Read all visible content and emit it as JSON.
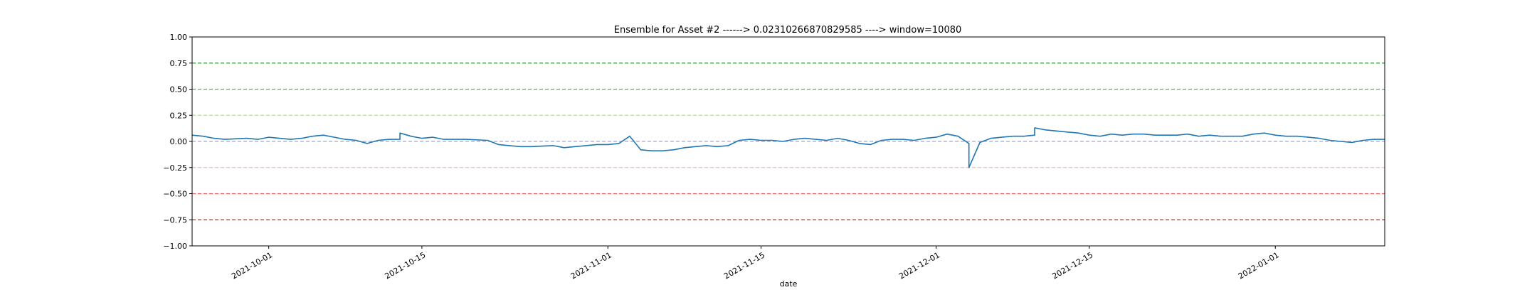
{
  "chart_data": {
    "type": "line",
    "title": "Ensemble for Asset #2 ------> 0.02310266870829585 ----> window=10080",
    "xlabel": "date",
    "ylabel": "",
    "xlim": [
      "2021-09-24",
      "2022-01-11"
    ],
    "ylim": [
      -1.0,
      1.0
    ],
    "grid": false,
    "legend": "none",
    "y_ticks": [
      "1.00",
      "0.75",
      "0.50",
      "0.25",
      "0.00",
      "−0.25",
      "−0.50",
      "−0.75",
      "−1.00"
    ],
    "x_ticks": [
      {
        "date": "2021-10-01",
        "label": "2021-10-01"
      },
      {
        "date": "2021-10-15",
        "label": "2021-10-15"
      },
      {
        "date": "2021-11-01",
        "label": "2021-11-01"
      },
      {
        "date": "2021-11-15",
        "label": "2021-11-15"
      },
      {
        "date": "2021-12-01",
        "label": "2021-12-01"
      },
      {
        "date": "2021-12-15",
        "label": "2021-12-15"
      },
      {
        "date": "2022-01-01",
        "label": "2022-01-01"
      }
    ],
    "reference_lines": [
      {
        "y": 0.75,
        "color": "#2e8b2e"
      },
      {
        "y": 0.5,
        "color": "#5aaa5a"
      },
      {
        "y": 0.25,
        "color": "#b5dca0"
      },
      {
        "y": 0.0,
        "color": "#a8a8c8"
      },
      {
        "y": -0.25,
        "color": "#f2b8b8"
      },
      {
        "y": -0.5,
        "color": "#e86060"
      },
      {
        "y": -0.75,
        "color": "#d62020"
      }
    ],
    "series": [
      {
        "color": "#1f77b4",
        "x": [
          "2021-09-24",
          "2021-09-25",
          "2021-09-26",
          "2021-09-27",
          "2021-09-29",
          "2021-09-30",
          "2021-10-01",
          "2021-10-02",
          "2021-10-03",
          "2021-10-04",
          "2021-10-05",
          "2021-10-06",
          "2021-10-07",
          "2021-10-08",
          "2021-10-09",
          "2021-10-10",
          "2021-10-11",
          "2021-10-12",
          "2021-10-13",
          "2021-10-13",
          "2021-10-14",
          "2021-10-15",
          "2021-10-16",
          "2021-10-17",
          "2021-10-19",
          "2021-10-21",
          "2021-10-22",
          "2021-10-23",
          "2021-10-24",
          "2021-10-25",
          "2021-10-27",
          "2021-10-28",
          "2021-10-29",
          "2021-10-30",
          "2021-10-31",
          "2021-11-01",
          "2021-11-02",
          "2021-11-03",
          "2021-11-04",
          "2021-11-05",
          "2021-11-06",
          "2021-11-07",
          "2021-11-08",
          "2021-11-09",
          "2021-11-10",
          "2021-11-11",
          "2021-11-12",
          "2021-11-13",
          "2021-11-14",
          "2021-11-15",
          "2021-11-16",
          "2021-11-17",
          "2021-11-18",
          "2021-11-19",
          "2021-11-20",
          "2021-11-21",
          "2021-11-22",
          "2021-11-23",
          "2021-11-24",
          "2021-11-25",
          "2021-11-26",
          "2021-11-27",
          "2021-11-28",
          "2021-11-29",
          "2021-11-30",
          "2021-12-01",
          "2021-12-02",
          "2021-12-03",
          "2021-12-04",
          "2021-12-04",
          "2021-12-05",
          "2021-12-06",
          "2021-12-07",
          "2021-12-08",
          "2021-12-09",
          "2021-12-10",
          "2021-12-10",
          "2021-12-11",
          "2021-12-12",
          "2021-12-13",
          "2021-12-14",
          "2021-12-15",
          "2021-12-16",
          "2021-12-17",
          "2021-12-18",
          "2021-12-19",
          "2021-12-20",
          "2021-12-21",
          "2021-12-22",
          "2021-12-23",
          "2021-12-24",
          "2021-12-25",
          "2021-12-26",
          "2021-12-27",
          "2021-12-28",
          "2021-12-29",
          "2021-12-30",
          "2021-12-31",
          "2022-01-01",
          "2022-01-02",
          "2022-01-03",
          "2022-01-04",
          "2022-01-05",
          "2022-01-06",
          "2022-01-07",
          "2022-01-08",
          "2022-01-09",
          "2022-01-10",
          "2022-01-11"
        ],
        "y": [
          0.06,
          0.05,
          0.03,
          0.02,
          0.03,
          0.02,
          0.04,
          0.03,
          0.02,
          0.03,
          0.05,
          0.06,
          0.04,
          0.02,
          0.01,
          -0.02,
          0.01,
          0.02,
          0.02,
          0.08,
          0.05,
          0.03,
          0.04,
          0.02,
          0.02,
          0.01,
          -0.03,
          -0.04,
          -0.05,
          -0.05,
          -0.04,
          -0.06,
          -0.05,
          -0.04,
          -0.03,
          -0.03,
          -0.02,
          0.05,
          -0.08,
          -0.09,
          -0.09,
          -0.08,
          -0.06,
          -0.05,
          -0.04,
          -0.05,
          -0.04,
          0.01,
          0.02,
          0.01,
          0.01,
          0.0,
          0.02,
          0.03,
          0.02,
          0.01,
          0.03,
          0.01,
          -0.02,
          -0.03,
          0.01,
          0.02,
          0.02,
          0.01,
          0.03,
          0.04,
          0.07,
          0.05,
          -0.02,
          -0.25,
          -0.01,
          0.03,
          0.04,
          0.05,
          0.05,
          0.06,
          0.13,
          0.11,
          0.1,
          0.09,
          0.08,
          0.06,
          0.05,
          0.07,
          0.06,
          0.07,
          0.07,
          0.06,
          0.06,
          0.06,
          0.07,
          0.05,
          0.06,
          0.05,
          0.05,
          0.05,
          0.07,
          0.08,
          0.06,
          0.05,
          0.05,
          0.04,
          0.03,
          0.01,
          0.0,
          -0.01,
          0.01,
          0.02,
          0.02
        ]
      }
    ]
  }
}
